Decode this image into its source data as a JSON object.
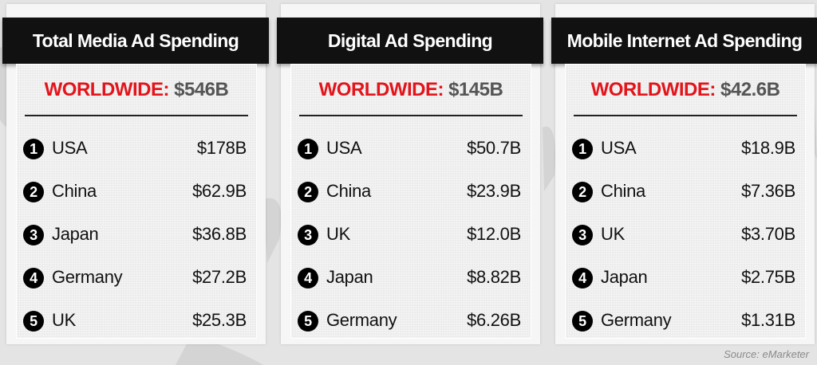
{
  "panels": [
    {
      "title": "Total Media Ad Spending",
      "worldwide_label": "WORLDWIDE:",
      "worldwide_value": "$546B",
      "rows": [
        [
          "1",
          "USA",
          "$178B"
        ],
        [
          "2",
          "China",
          "$62.9B"
        ],
        [
          "3",
          "Japan",
          "$36.8B"
        ],
        [
          "4",
          "Germany",
          "$27.2B"
        ],
        [
          "5",
          "UK",
          "$25.3B"
        ]
      ]
    },
    {
      "title": "Digital Ad Spending",
      "worldwide_label": "WORLDWIDE:",
      "worldwide_value": "$145B",
      "rows": [
        [
          "1",
          "USA",
          "$50.7B"
        ],
        [
          "2",
          "China",
          "$23.9B"
        ],
        [
          "3",
          "UK",
          "$12.0B"
        ],
        [
          "4",
          "Japan",
          "$8.82B"
        ],
        [
          "5",
          "Germany",
          "$6.26B"
        ]
      ]
    },
    {
      "title": "Mobile Internet Ad Spending",
      "worldwide_label": "WORLDWIDE:",
      "worldwide_value": "$42.6B",
      "rows": [
        [
          "1",
          "USA",
          "$18.9B"
        ],
        [
          "2",
          "China",
          "$7.36B"
        ],
        [
          "3",
          "UK",
          "$3.70B"
        ],
        [
          "4",
          "Japan",
          "$2.75B"
        ],
        [
          "5",
          "Germany",
          "$1.31B"
        ]
      ]
    }
  ],
  "source": "Source: eMarketer"
}
